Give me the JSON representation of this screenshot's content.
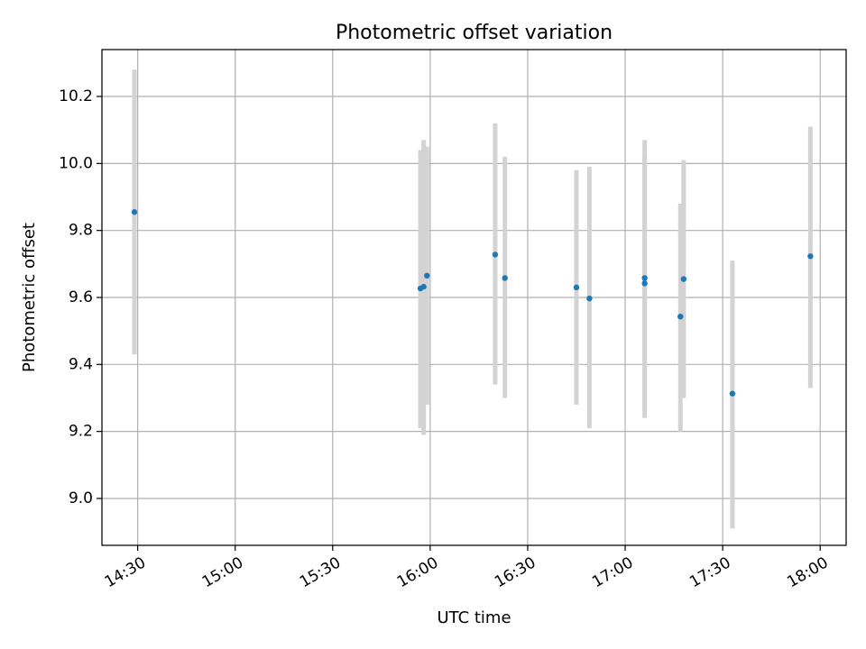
{
  "chart_data": {
    "type": "scatter",
    "title": "Photometric offset variation",
    "xlabel": "UTC time",
    "ylabel": "Photometric offset",
    "x_type": "time",
    "x_ticks": [
      "14:30",
      "15:00",
      "15:30",
      "16:00",
      "16:30",
      "17:00",
      "17:30",
      "18:00"
    ],
    "y_ticks": [
      "9.0",
      "9.2",
      "9.4",
      "9.6",
      "9.8",
      "10.0",
      "10.2"
    ],
    "xlim": [
      "14:19",
      "18:08"
    ],
    "ylim": [
      8.86,
      10.34
    ],
    "grid": true,
    "colors": {
      "points": "#1f77b4",
      "error_bars": "#d3d3d3",
      "grid": "#b0b0b0"
    },
    "points": [
      {
        "x": "14:29",
        "y": 9.855,
        "ylow": 9.43,
        "yhigh": 10.28
      },
      {
        "x": "15:57",
        "y": 9.627,
        "ylow": 9.21,
        "yhigh": 10.04
      },
      {
        "x": "15:58",
        "y": 9.632,
        "ylow": 9.19,
        "yhigh": 10.07
      },
      {
        "x": "15:59",
        "y": 9.665,
        "ylow": 9.28,
        "yhigh": 10.05
      },
      {
        "x": "16:20",
        "y": 9.728,
        "ylow": 9.34,
        "yhigh": 10.12
      },
      {
        "x": "16:23",
        "y": 9.658,
        "ylow": 9.3,
        "yhigh": 10.02
      },
      {
        "x": "16:45",
        "y": 9.63,
        "ylow": 9.28,
        "yhigh": 9.98
      },
      {
        "x": "16:49",
        "y": 9.597,
        "ylow": 9.21,
        "yhigh": 9.99
      },
      {
        "x": "17:06",
        "y": 9.642,
        "ylow": 9.26,
        "yhigh": 10.02
      },
      {
        "x": "17:06",
        "y": 9.658,
        "ylow": 9.24,
        "yhigh": 10.07
      },
      {
        "x": "17:17",
        "y": 9.543,
        "ylow": 9.2,
        "yhigh": 9.88
      },
      {
        "x": "17:18",
        "y": 9.655,
        "ylow": 9.3,
        "yhigh": 10.01
      },
      {
        "x": "17:33",
        "y": 9.313,
        "ylow": 8.91,
        "yhigh": 9.71
      },
      {
        "x": "17:57",
        "y": 9.723,
        "ylow": 9.33,
        "yhigh": 10.11
      }
    ]
  }
}
